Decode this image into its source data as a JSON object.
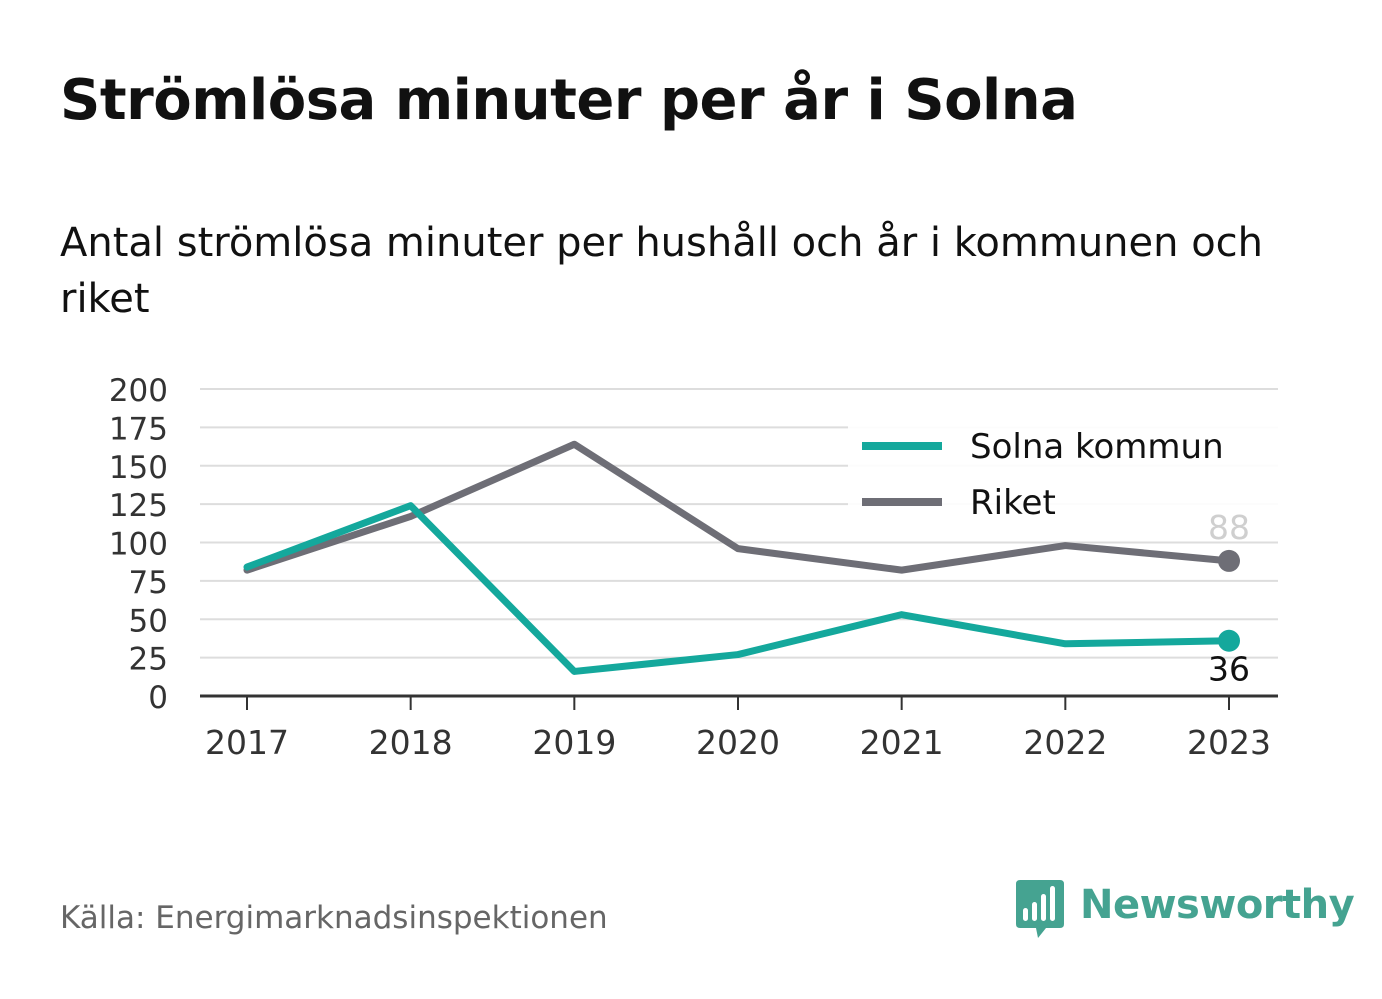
{
  "title": "Strömlösa minuter per år i Solna",
  "subtitle": "Antal strömlösa minuter per hushåll och år i kommunen och riket",
  "source": "Källa: Energimarknadsinspektionen",
  "brand": "Newsworthy",
  "colors": {
    "solna": "#14a89c",
    "riket": "#6e6e76",
    "grid": "#dddddd",
    "axis": "#333333",
    "brand": "#45a391"
  },
  "chart_data": {
    "type": "line",
    "categories": [
      "2017",
      "2018",
      "2019",
      "2020",
      "2021",
      "2022",
      "2023"
    ],
    "series": [
      {
        "name": "Solna kommun",
        "color": "#14a89c",
        "values": [
          84,
          124,
          16,
          27,
          53,
          34,
          36
        ],
        "end_label": "36"
      },
      {
        "name": "Riket",
        "color": "#6e6e76",
        "values": [
          82,
          117,
          164,
          96,
          82,
          98,
          88
        ],
        "end_label": "88"
      }
    ],
    "ylim": [
      0,
      200
    ],
    "yticks": [
      "0",
      "25",
      "50",
      "75",
      "100",
      "125",
      "150",
      "175",
      "200"
    ],
    "grid": true,
    "legend_position": "top-right"
  }
}
